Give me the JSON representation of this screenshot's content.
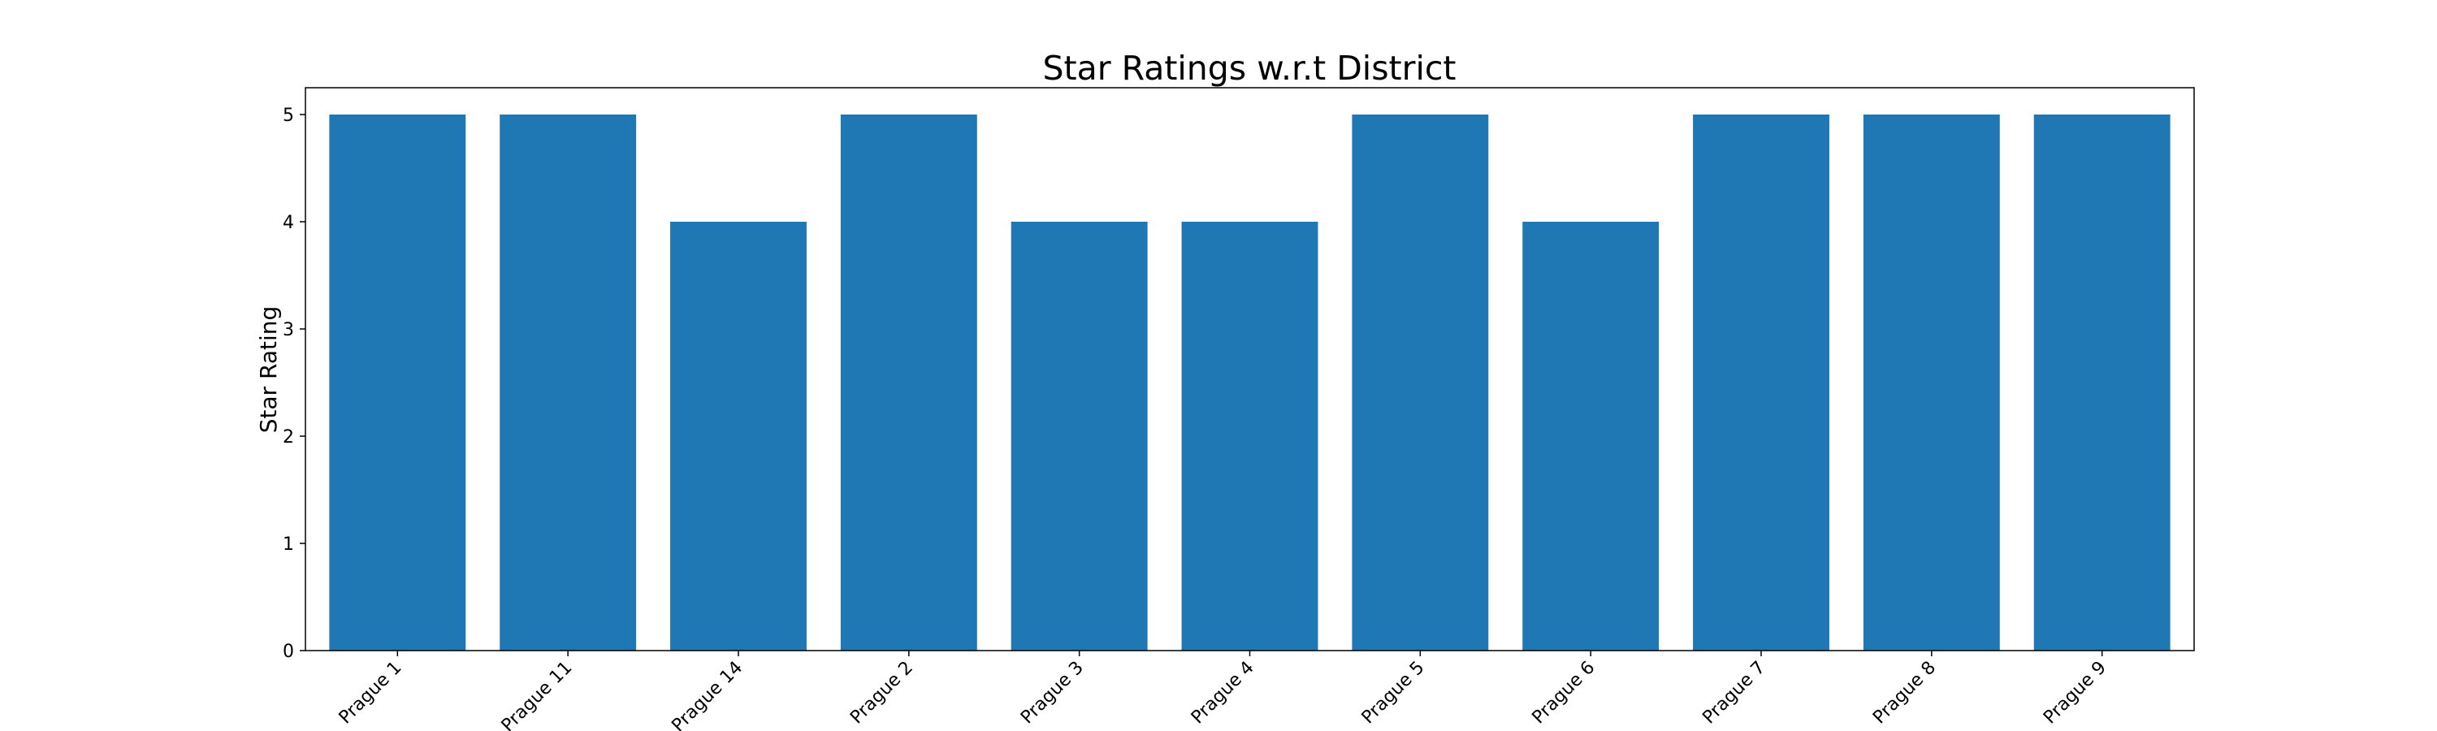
{
  "chart_data": {
    "type": "bar",
    "title": "Star Ratings w.r.t District",
    "xlabel": "",
    "ylabel": "Star Rating",
    "categories": [
      "Prague 1",
      "Prague 11",
      "Prague 14",
      "Prague 2",
      "Prague 3",
      "Prague 4",
      "Prague 5",
      "Prague 6",
      "Prague 7",
      "Prague 8",
      "Prague 9"
    ],
    "values": [
      5,
      5,
      4,
      5,
      4,
      4,
      5,
      4,
      5,
      5,
      5
    ],
    "ylim": [
      0,
      5.25
    ],
    "yticks": [
      0,
      1,
      2,
      3,
      4,
      5
    ],
    "color": "#1f77b4",
    "grid": false,
    "legend": "none"
  }
}
